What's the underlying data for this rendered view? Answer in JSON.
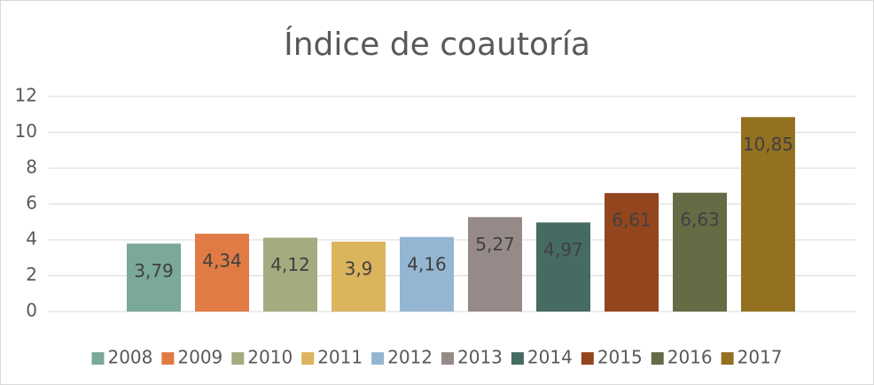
{
  "chart_data": {
    "type": "bar",
    "title": "Índice de coautoría",
    "series": [
      {
        "name": "2008",
        "color": "#7aa89a",
        "values": [
          3.79
        ],
        "value_labels": [
          "3,79"
        ]
      },
      {
        "name": "2009",
        "color": "#e07b45",
        "values": [
          4.34
        ],
        "value_labels": [
          "4,34"
        ]
      },
      {
        "name": "2010",
        "color": "#a4ab7e",
        "values": [
          4.12
        ],
        "value_labels": [
          "4,12"
        ]
      },
      {
        "name": "2011",
        "color": "#dbb45e",
        "values": [
          3.9
        ],
        "value_labels": [
          "3,9"
        ]
      },
      {
        "name": "2012",
        "color": "#94b6d2",
        "values": [
          4.16
        ],
        "value_labels": [
          "4,16"
        ]
      },
      {
        "name": "2013",
        "color": "#968a88",
        "values": [
          5.27
        ],
        "value_labels": [
          "5,27"
        ]
      },
      {
        "name": "2014",
        "color": "#466b62",
        "values": [
          4.97
        ],
        "value_labels": [
          "4,97"
        ]
      },
      {
        "name": "2015",
        "color": "#93461d",
        "values": [
          6.61
        ],
        "value_labels": [
          "6,61"
        ]
      },
      {
        "name": "2016",
        "color": "#646c45",
        "values": [
          6.63
        ],
        "value_labels": [
          "6,63"
        ]
      },
      {
        "name": "2017",
        "color": "#937121",
        "values": [
          10.85
        ],
        "value_labels": [
          "10,85"
        ]
      }
    ],
    "ylim": [
      0,
      12
    ],
    "yticks": [
      0,
      2,
      4,
      6,
      8,
      10,
      12
    ],
    "grid": true,
    "legend": "bottom"
  }
}
